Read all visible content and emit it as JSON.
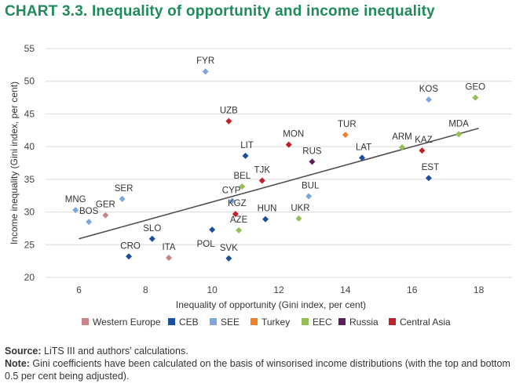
{
  "title": "CHART 3.3. Inequality of opportunity and income inequality",
  "chart_data": {
    "type": "scatter",
    "xlabel": "Inequality of opportunity (Gini index, per cent)",
    "ylabel": "Income inequality (Gini index, per cent)",
    "xlim": [
      5,
      19
    ],
    "ylim": [
      20,
      55
    ],
    "xticks": [
      6,
      8,
      10,
      12,
      14,
      16,
      18
    ],
    "yticks": [
      20,
      25,
      30,
      35,
      40,
      45,
      50,
      55
    ],
    "grid": "horizontal",
    "legend_position": "bottom",
    "colors": {
      "Western Europe": "#c9868a",
      "CEB": "#1a4f9c",
      "SEE": "#7ea6dc",
      "Turkey": "#f07f28",
      "EEC": "#93bf54",
      "Russia": "#5b1f5c",
      "Central Asia": "#c0202a"
    },
    "legend": [
      "Western Europe",
      "CEB",
      "SEE",
      "Turkey",
      "EEC",
      "Russia",
      "Central Asia"
    ],
    "trendline": {
      "x": [
        6,
        18
      ],
      "y": [
        25.9,
        42.8
      ]
    },
    "points": [
      {
        "label": "FYR",
        "group": "SEE",
        "x": 9.8,
        "y": 51.5
      },
      {
        "label": "KOS",
        "group": "SEE",
        "x": 16.5,
        "y": 47.2
      },
      {
        "label": "GEO",
        "group": "EEC",
        "x": 17.9,
        "y": 47.5
      },
      {
        "label": "UZB",
        "group": "Central Asia",
        "x": 10.5,
        "y": 43.9
      },
      {
        "label": "TUR",
        "group": "Turkey",
        "x": 14.0,
        "y": 41.8
      },
      {
        "label": "MDA",
        "group": "EEC",
        "x": 17.4,
        "y": 41.9
      },
      {
        "label": "MON",
        "group": "Central Asia",
        "x": 12.3,
        "y": 40.3
      },
      {
        "label": "ARM",
        "group": "EEC",
        "x": 15.7,
        "y": 39.9
      },
      {
        "label": "KAZ",
        "group": "Central Asia",
        "x": 16.3,
        "y": 39.4
      },
      {
        "label": "LIT",
        "group": "CEB",
        "x": 11.0,
        "y": 38.6
      },
      {
        "label": "LAT",
        "group": "CEB",
        "x": 14.5,
        "y": 38.3
      },
      {
        "label": "RUS",
        "group": "Russia",
        "x": 13.0,
        "y": 37.7
      },
      {
        "label": "EST",
        "group": "CEB",
        "x": 16.5,
        "y": 35.2
      },
      {
        "label": "TJK",
        "group": "Central Asia",
        "x": 11.5,
        "y": 34.8
      },
      {
        "label": "BEL",
        "group": "EEC",
        "x": 10.9,
        "y": 33.9
      },
      {
        "label": "SER",
        "group": "SEE",
        "x": 7.3,
        "y": 32.0
      },
      {
        "label": "BUL",
        "group": "SEE",
        "x": 12.9,
        "y": 32.4
      },
      {
        "label": "CYP",
        "group": "SEE",
        "x": 10.6,
        "y": 31.7
      },
      {
        "label": "MNG",
        "group": "SEE",
        "x": 5.9,
        "y": 30.3
      },
      {
        "label": "KGZ",
        "group": "Central Asia",
        "x": 10.7,
        "y": 29.7
      },
      {
        "label": "GER",
        "group": "Western Europe",
        "x": 6.8,
        "y": 29.5
      },
      {
        "label": "UKR",
        "group": "EEC",
        "x": 12.6,
        "y": 29.0
      },
      {
        "label": "HUN",
        "group": "CEB",
        "x": 11.6,
        "y": 28.9
      },
      {
        "label": "BOS",
        "group": "SEE",
        "x": 6.3,
        "y": 28.5
      },
      {
        "label": "AZE",
        "group": "EEC",
        "x": 10.8,
        "y": 27.2
      },
      {
        "label": "SLO",
        "group": "CEB",
        "x": 8.2,
        "y": 25.9
      },
      {
        "label": "POL",
        "group": "CEB",
        "x": 10.0,
        "y": 27.3
      },
      {
        "label": "ITA",
        "group": "Western Europe",
        "x": 8.7,
        "y": 23.0
      },
      {
        "label": "CRO",
        "group": "CEB",
        "x": 7.5,
        "y": 23.2
      },
      {
        "label": "SVK",
        "group": "CEB",
        "x": 10.5,
        "y": 22.9
      }
    ]
  },
  "footer": {
    "source_label": "Source:",
    "source_text": " LiTS III and authors’ calculations.",
    "note_label": "Note:",
    "note_text": " Gini coefficients have been calculated on the basis of winsorised income distributions (with the top and bottom 0.5 per cent being adjusted)."
  }
}
